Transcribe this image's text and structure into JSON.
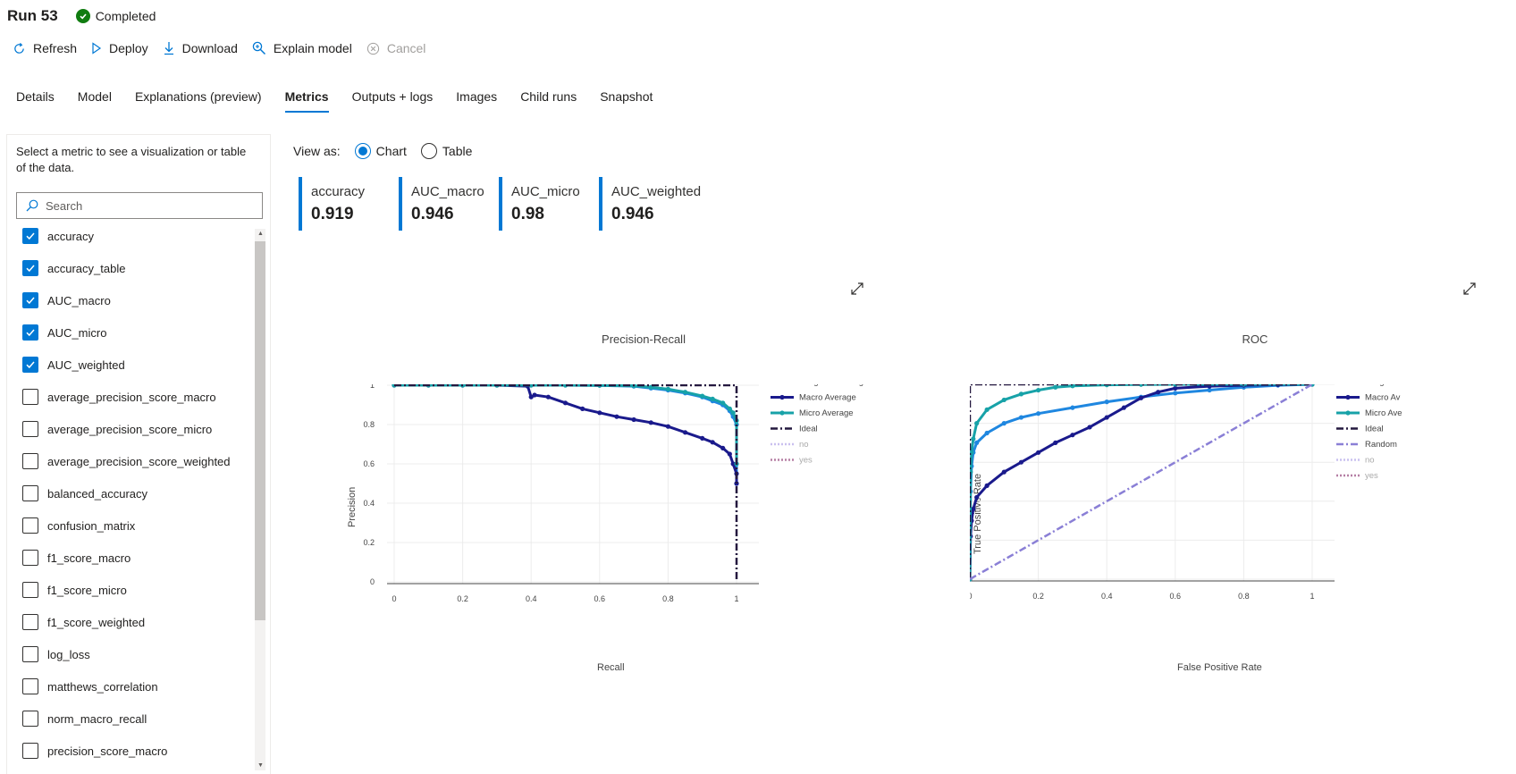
{
  "header": {
    "run_title": "Run 53",
    "status": "Completed"
  },
  "toolbar": {
    "refresh": "Refresh",
    "deploy": "Deploy",
    "download": "Download",
    "explain": "Explain model",
    "cancel": "Cancel"
  },
  "tabs": [
    "Details",
    "Model",
    "Explanations (preview)",
    "Metrics",
    "Outputs + logs",
    "Images",
    "Child runs",
    "Snapshot"
  ],
  "active_tab": "Metrics",
  "left_panel": {
    "intro": "Select a metric to see a visualization or table of the data.",
    "search_placeholder": "Search",
    "metrics": [
      {
        "label": "accuracy",
        "checked": true
      },
      {
        "label": "accuracy_table",
        "checked": true
      },
      {
        "label": "AUC_macro",
        "checked": true
      },
      {
        "label": "AUC_micro",
        "checked": true
      },
      {
        "label": "AUC_weighted",
        "checked": true
      },
      {
        "label": "average_precision_score_macro",
        "checked": false
      },
      {
        "label": "average_precision_score_micro",
        "checked": false
      },
      {
        "label": "average_precision_score_weighted",
        "checked": false
      },
      {
        "label": "balanced_accuracy",
        "checked": false
      },
      {
        "label": "confusion_matrix",
        "checked": false
      },
      {
        "label": "f1_score_macro",
        "checked": false
      },
      {
        "label": "f1_score_micro",
        "checked": false
      },
      {
        "label": "f1_score_weighted",
        "checked": false
      },
      {
        "label": "log_loss",
        "checked": false
      },
      {
        "label": "matthews_correlation",
        "checked": false
      },
      {
        "label": "norm_macro_recall",
        "checked": false
      },
      {
        "label": "precision_score_macro",
        "checked": false
      }
    ]
  },
  "view_as": {
    "label": "View as:",
    "chart": "Chart",
    "table": "Table",
    "selected": "Chart"
  },
  "cards": [
    {
      "label": "accuracy",
      "value": "0.919"
    },
    {
      "label": "AUC_macro",
      "value": "0.946"
    },
    {
      "label": "AUC_micro",
      "value": "0.98"
    },
    {
      "label": "AUC_weighted",
      "value": "0.946"
    }
  ],
  "colors": {
    "accent": "#0078d4",
    "weighted": "#1f87e0",
    "macro": "#1a1a8c",
    "micro": "#17a2a8",
    "ideal": "#24183f",
    "random": "#8a7fd6",
    "no": "#c9c0ef",
    "yes": "#b57fa4"
  },
  "chart_data": [
    {
      "type": "line",
      "title": "Precision-Recall",
      "xlabel": "Recall",
      "ylabel": "Precision",
      "xlim": [
        0,
        1
      ],
      "ylim": [
        0,
        1
      ],
      "xticks": [
        "0",
        "0.2",
        "0.4",
        "0.6",
        "0.8",
        "1"
      ],
      "yticks": [
        "0",
        "0.2",
        "0.4",
        "0.6",
        "0.8",
        "1"
      ],
      "legend": [
        "Weighted Average",
        "Macro Average",
        "Micro Average",
        "Ideal",
        "no",
        "yes"
      ],
      "legend_position": "right",
      "series": [
        {
          "name": "Weighted Average",
          "x": [
            0,
            0.1,
            0.2,
            0.3,
            0.4,
            0.5,
            0.6,
            0.7,
            0.75,
            0.8,
            0.85,
            0.9,
            0.93,
            0.96,
            0.98,
            0.99,
            1.0,
            1.0
          ],
          "y": [
            1,
            1,
            1,
            1,
            1,
            1,
            0.999,
            0.995,
            0.985,
            0.975,
            0.96,
            0.94,
            0.92,
            0.9,
            0.87,
            0.84,
            0.8,
            0.5
          ]
        },
        {
          "name": "Macro Average",
          "x": [
            0,
            0.1,
            0.2,
            0.3,
            0.39,
            0.4,
            0.41,
            0.45,
            0.5,
            0.55,
            0.6,
            0.65,
            0.7,
            0.75,
            0.8,
            0.85,
            0.9,
            0.93,
            0.96,
            0.98,
            0.99,
            1.0,
            1.0
          ],
          "y": [
            1,
            1,
            1,
            1,
            0.995,
            0.94,
            0.95,
            0.94,
            0.91,
            0.88,
            0.86,
            0.84,
            0.825,
            0.81,
            0.79,
            0.76,
            0.73,
            0.71,
            0.68,
            0.65,
            0.6,
            0.55,
            0.5
          ]
        },
        {
          "name": "Micro Average",
          "x": [
            0,
            0.1,
            0.2,
            0.3,
            0.4,
            0.5,
            0.6,
            0.7,
            0.75,
            0.8,
            0.85,
            0.9,
            0.93,
            0.96,
            0.98,
            0.99,
            1.0,
            1.0
          ],
          "y": [
            1,
            1,
            1,
            1,
            1,
            1,
            0.999,
            0.997,
            0.99,
            0.98,
            0.965,
            0.945,
            0.93,
            0.91,
            0.88,
            0.86,
            0.82,
            0.6
          ]
        },
        {
          "name": "Ideal",
          "x": [
            0,
            1,
            1
          ],
          "y": [
            1,
            1,
            0
          ]
        }
      ]
    },
    {
      "type": "line",
      "title": "ROC",
      "xlabel": "False Positive Rate",
      "ylabel": "True Positive Rate",
      "xlim": [
        0,
        1
      ],
      "ylim": [
        0,
        1
      ],
      "xticks": [
        "0",
        "0.2",
        "0.4",
        "0.6",
        "0.8",
        "1"
      ],
      "yticks": [
        "0",
        "0.2",
        "0.4",
        "0.6",
        "0.8",
        "1"
      ],
      "legend": [
        "Weighted",
        "Macro Av",
        "Micro Ave",
        "Ideal",
        "Random",
        "no",
        "yes"
      ],
      "legend_position": "right",
      "series": [
        {
          "name": "Weighted",
          "x": [
            0,
            0.002,
            0.005,
            0.01,
            0.02,
            0.05,
            0.1,
            0.15,
            0.2,
            0.3,
            0.4,
            0.5,
            0.6,
            0.7,
            0.8,
            0.9,
            1.0
          ],
          "y": [
            0,
            0.45,
            0.58,
            0.65,
            0.7,
            0.75,
            0.8,
            0.83,
            0.85,
            0.88,
            0.91,
            0.935,
            0.955,
            0.97,
            0.985,
            0.995,
            1.0
          ]
        },
        {
          "name": "Macro Average",
          "x": [
            0,
            0.002,
            0.005,
            0.01,
            0.02,
            0.05,
            0.1,
            0.15,
            0.2,
            0.25,
            0.3,
            0.35,
            0.4,
            0.45,
            0.5,
            0.55,
            0.6,
            0.7,
            0.8,
            0.9,
            1.0
          ],
          "y": [
            0,
            0.22,
            0.3,
            0.36,
            0.42,
            0.48,
            0.55,
            0.6,
            0.65,
            0.7,
            0.74,
            0.78,
            0.83,
            0.88,
            0.93,
            0.96,
            0.98,
            0.99,
            0.995,
            0.998,
            1.0
          ]
        },
        {
          "name": "Micro Average",
          "x": [
            0,
            0.002,
            0.005,
            0.01,
            0.02,
            0.05,
            0.1,
            0.15,
            0.2,
            0.25,
            0.3,
            0.4,
            0.5,
            0.6,
            0.8,
            1.0
          ],
          "y": [
            0,
            0.55,
            0.65,
            0.72,
            0.8,
            0.87,
            0.92,
            0.95,
            0.97,
            0.985,
            0.992,
            0.997,
            0.999,
            1.0,
            1.0,
            1.0
          ]
        },
        {
          "name": "Ideal",
          "x": [
            0,
            0,
            1
          ],
          "y": [
            0,
            1,
            1
          ]
        },
        {
          "name": "Random",
          "x": [
            0,
            1
          ],
          "y": [
            0,
            1
          ]
        }
      ]
    }
  ]
}
